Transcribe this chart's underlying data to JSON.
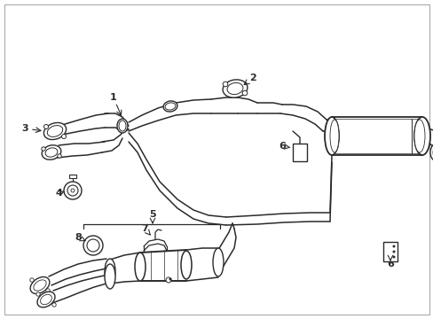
{
  "background_color": "#ffffff",
  "line_color": "#2a2a2a",
  "fig_width": 4.89,
  "fig_height": 3.6,
  "dpi": 100,
  "border": [
    5,
    5,
    484,
    355
  ]
}
